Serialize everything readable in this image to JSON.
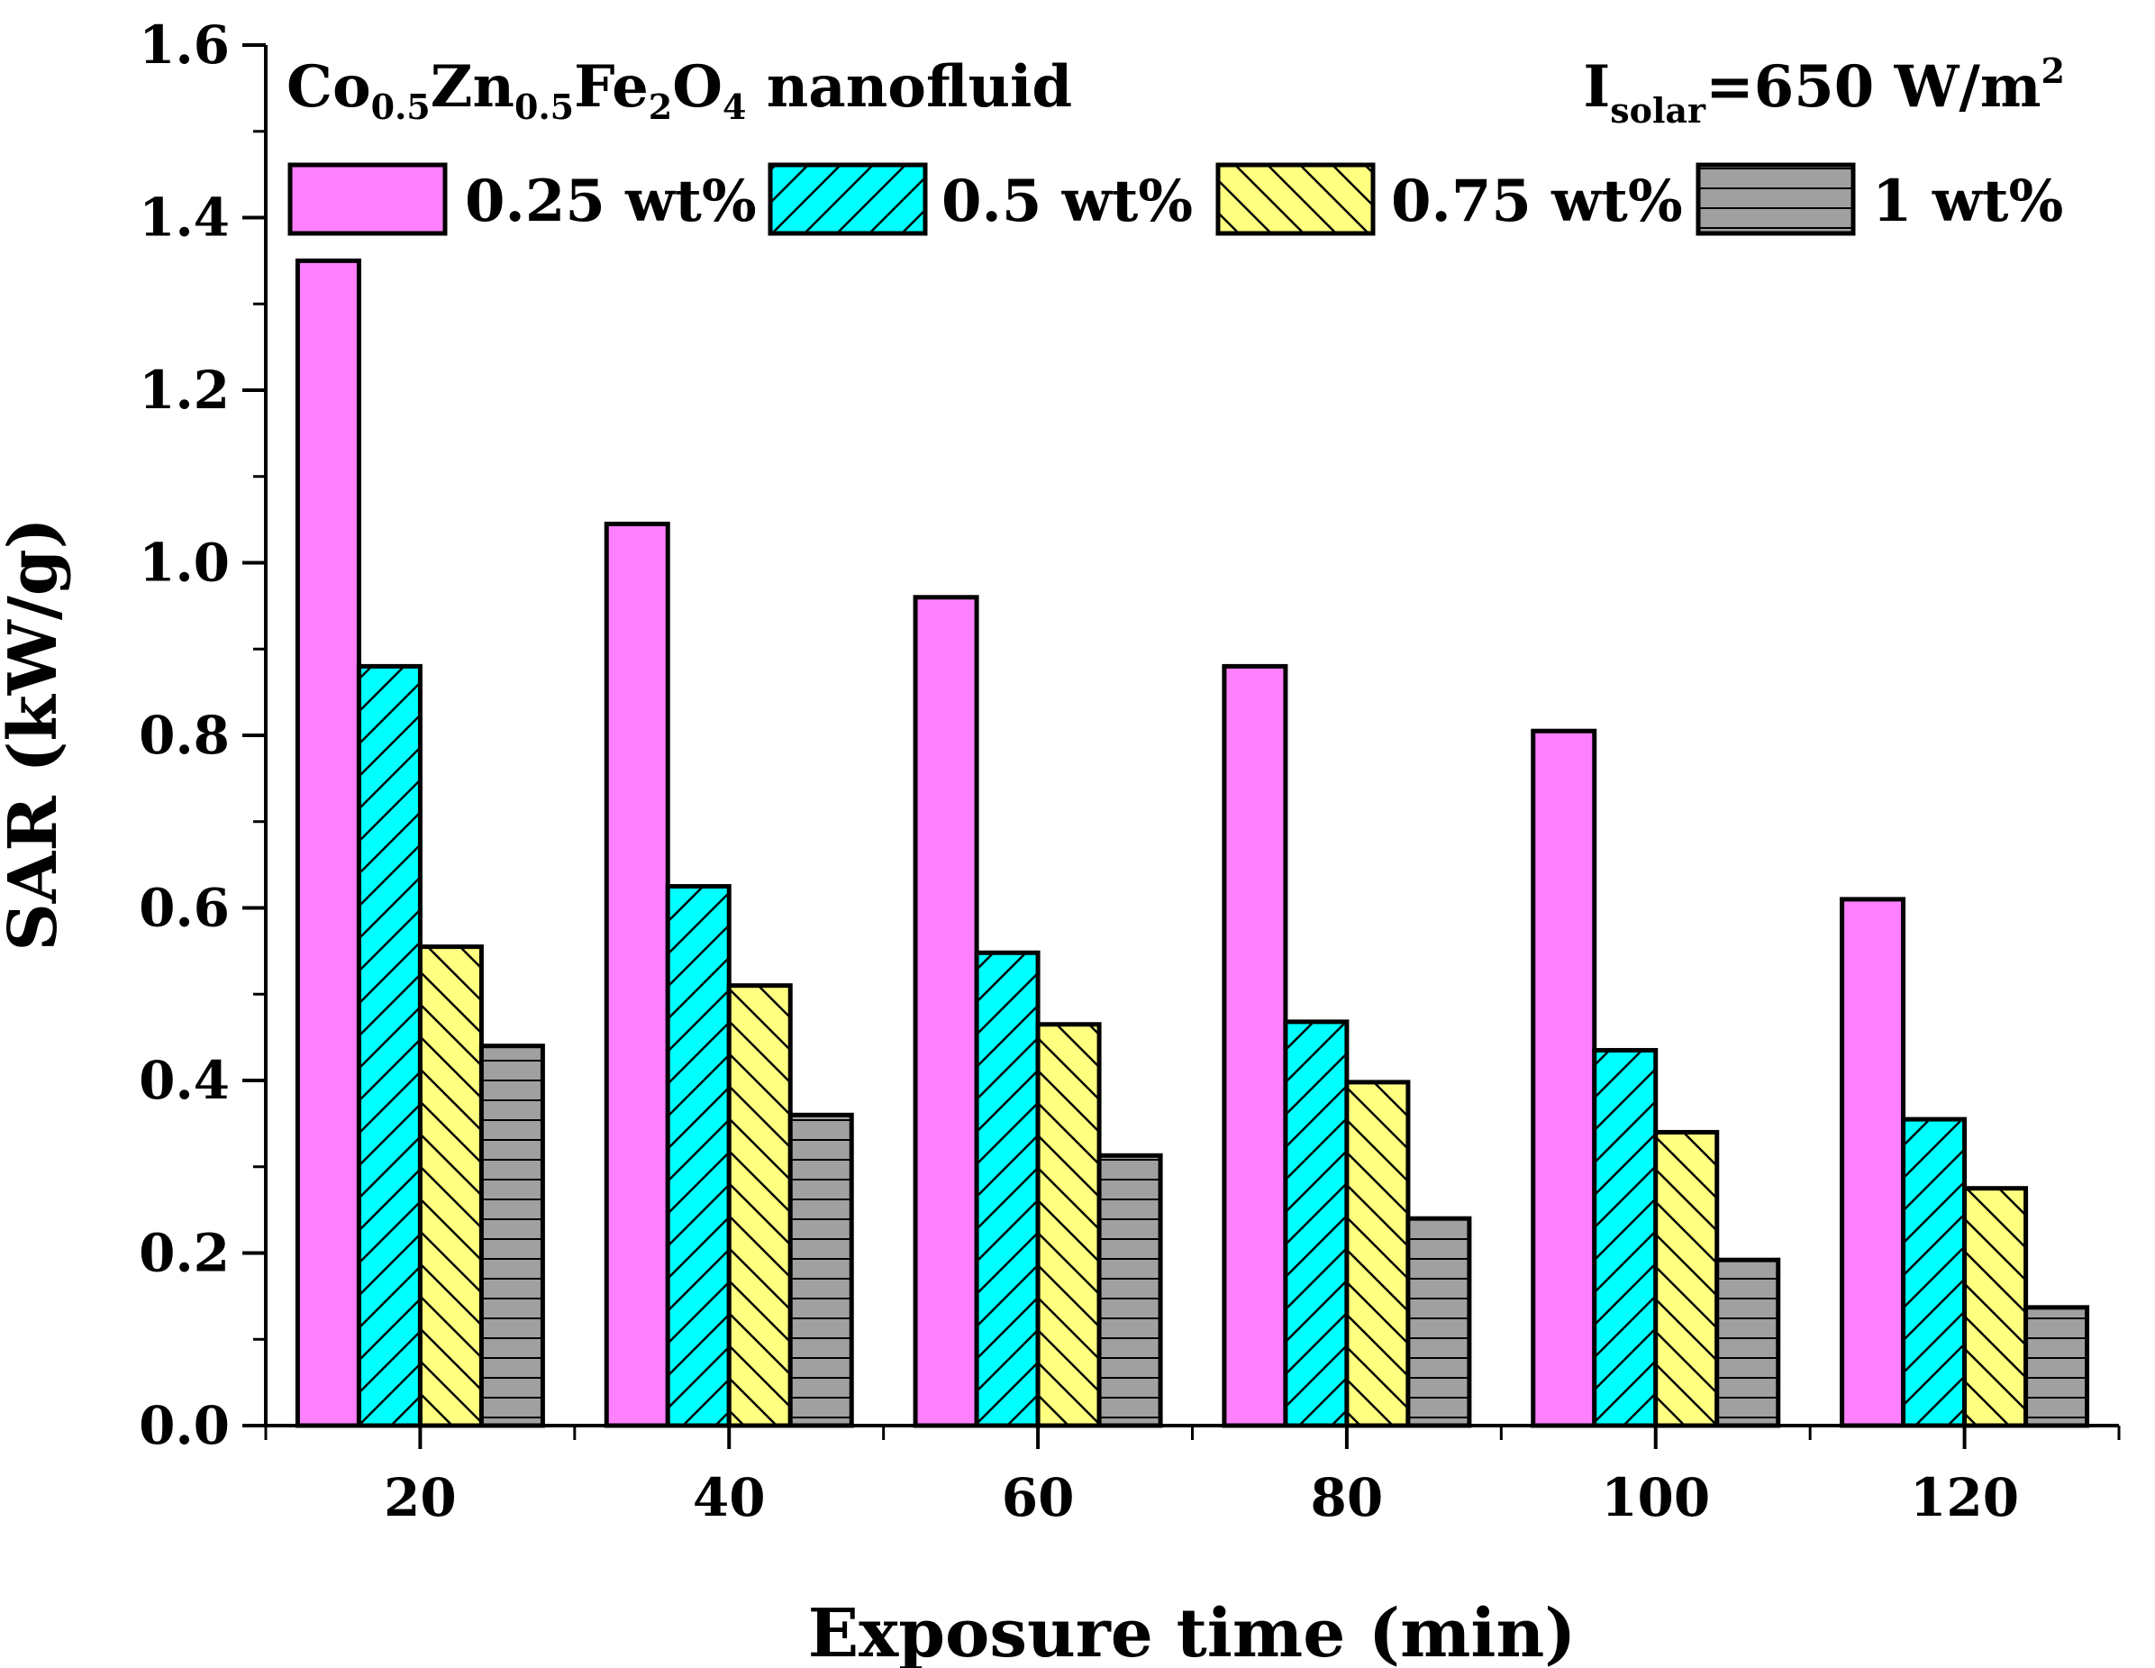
{
  "chart_data": {
    "type": "bar",
    "title": {
      "material_parts": [
        {
          "text": "Co",
          "sub": false
        },
        {
          "text": "0.5",
          "sub": true
        },
        {
          "text": "Zn",
          "sub": false
        },
        {
          "text": "0.5",
          "sub": true
        },
        {
          "text": "Fe",
          "sub": false
        },
        {
          "text": "2",
          "sub": true
        },
        {
          "text": "O",
          "sub": false
        },
        {
          "text": "4",
          "sub": true
        },
        {
          "text": " nanofluid",
          "sub": false
        }
      ],
      "condition_parts": [
        {
          "text": "I",
          "pos": "base"
        },
        {
          "text": "solar",
          "pos": "sub"
        },
        {
          "text": "=650 W/m",
          "pos": "base"
        },
        {
          "text": "2",
          "pos": "sup"
        }
      ]
    },
    "xlabel": "Exposure time (min)",
    "ylabel": "SAR (kW/g)",
    "ylim": [
      0,
      1.6
    ],
    "y_ticks": [
      "0.0",
      "0.2",
      "0.4",
      "0.6",
      "0.8",
      "1.0",
      "1.2",
      "1.4",
      "1.6"
    ],
    "categories": [
      "20",
      "40",
      "60",
      "80",
      "100",
      "120"
    ],
    "series": [
      {
        "name": "0.25 wt%",
        "color": "#ff80ff",
        "pattern": "solid",
        "values": [
          1.35,
          1.045,
          0.96,
          0.88,
          0.805,
          0.61
        ]
      },
      {
        "name": "0.5 wt%",
        "color": "#00ffff",
        "pattern": "forward",
        "values": [
          0.88,
          0.625,
          0.548,
          0.468,
          0.435,
          0.355
        ]
      },
      {
        "name": "0.75 wt%",
        "color": "#ffff80",
        "pattern": "backward",
        "values": [
          0.555,
          0.51,
          0.465,
          0.398,
          0.34,
          0.275
        ]
      },
      {
        "name": "1 wt%",
        "color": "#a0a0a0",
        "pattern": "horizontal",
        "values": [
          0.44,
          0.36,
          0.313,
          0.24,
          0.192,
          0.137
        ]
      }
    ],
    "legend_position": "top",
    "grid": false
  }
}
